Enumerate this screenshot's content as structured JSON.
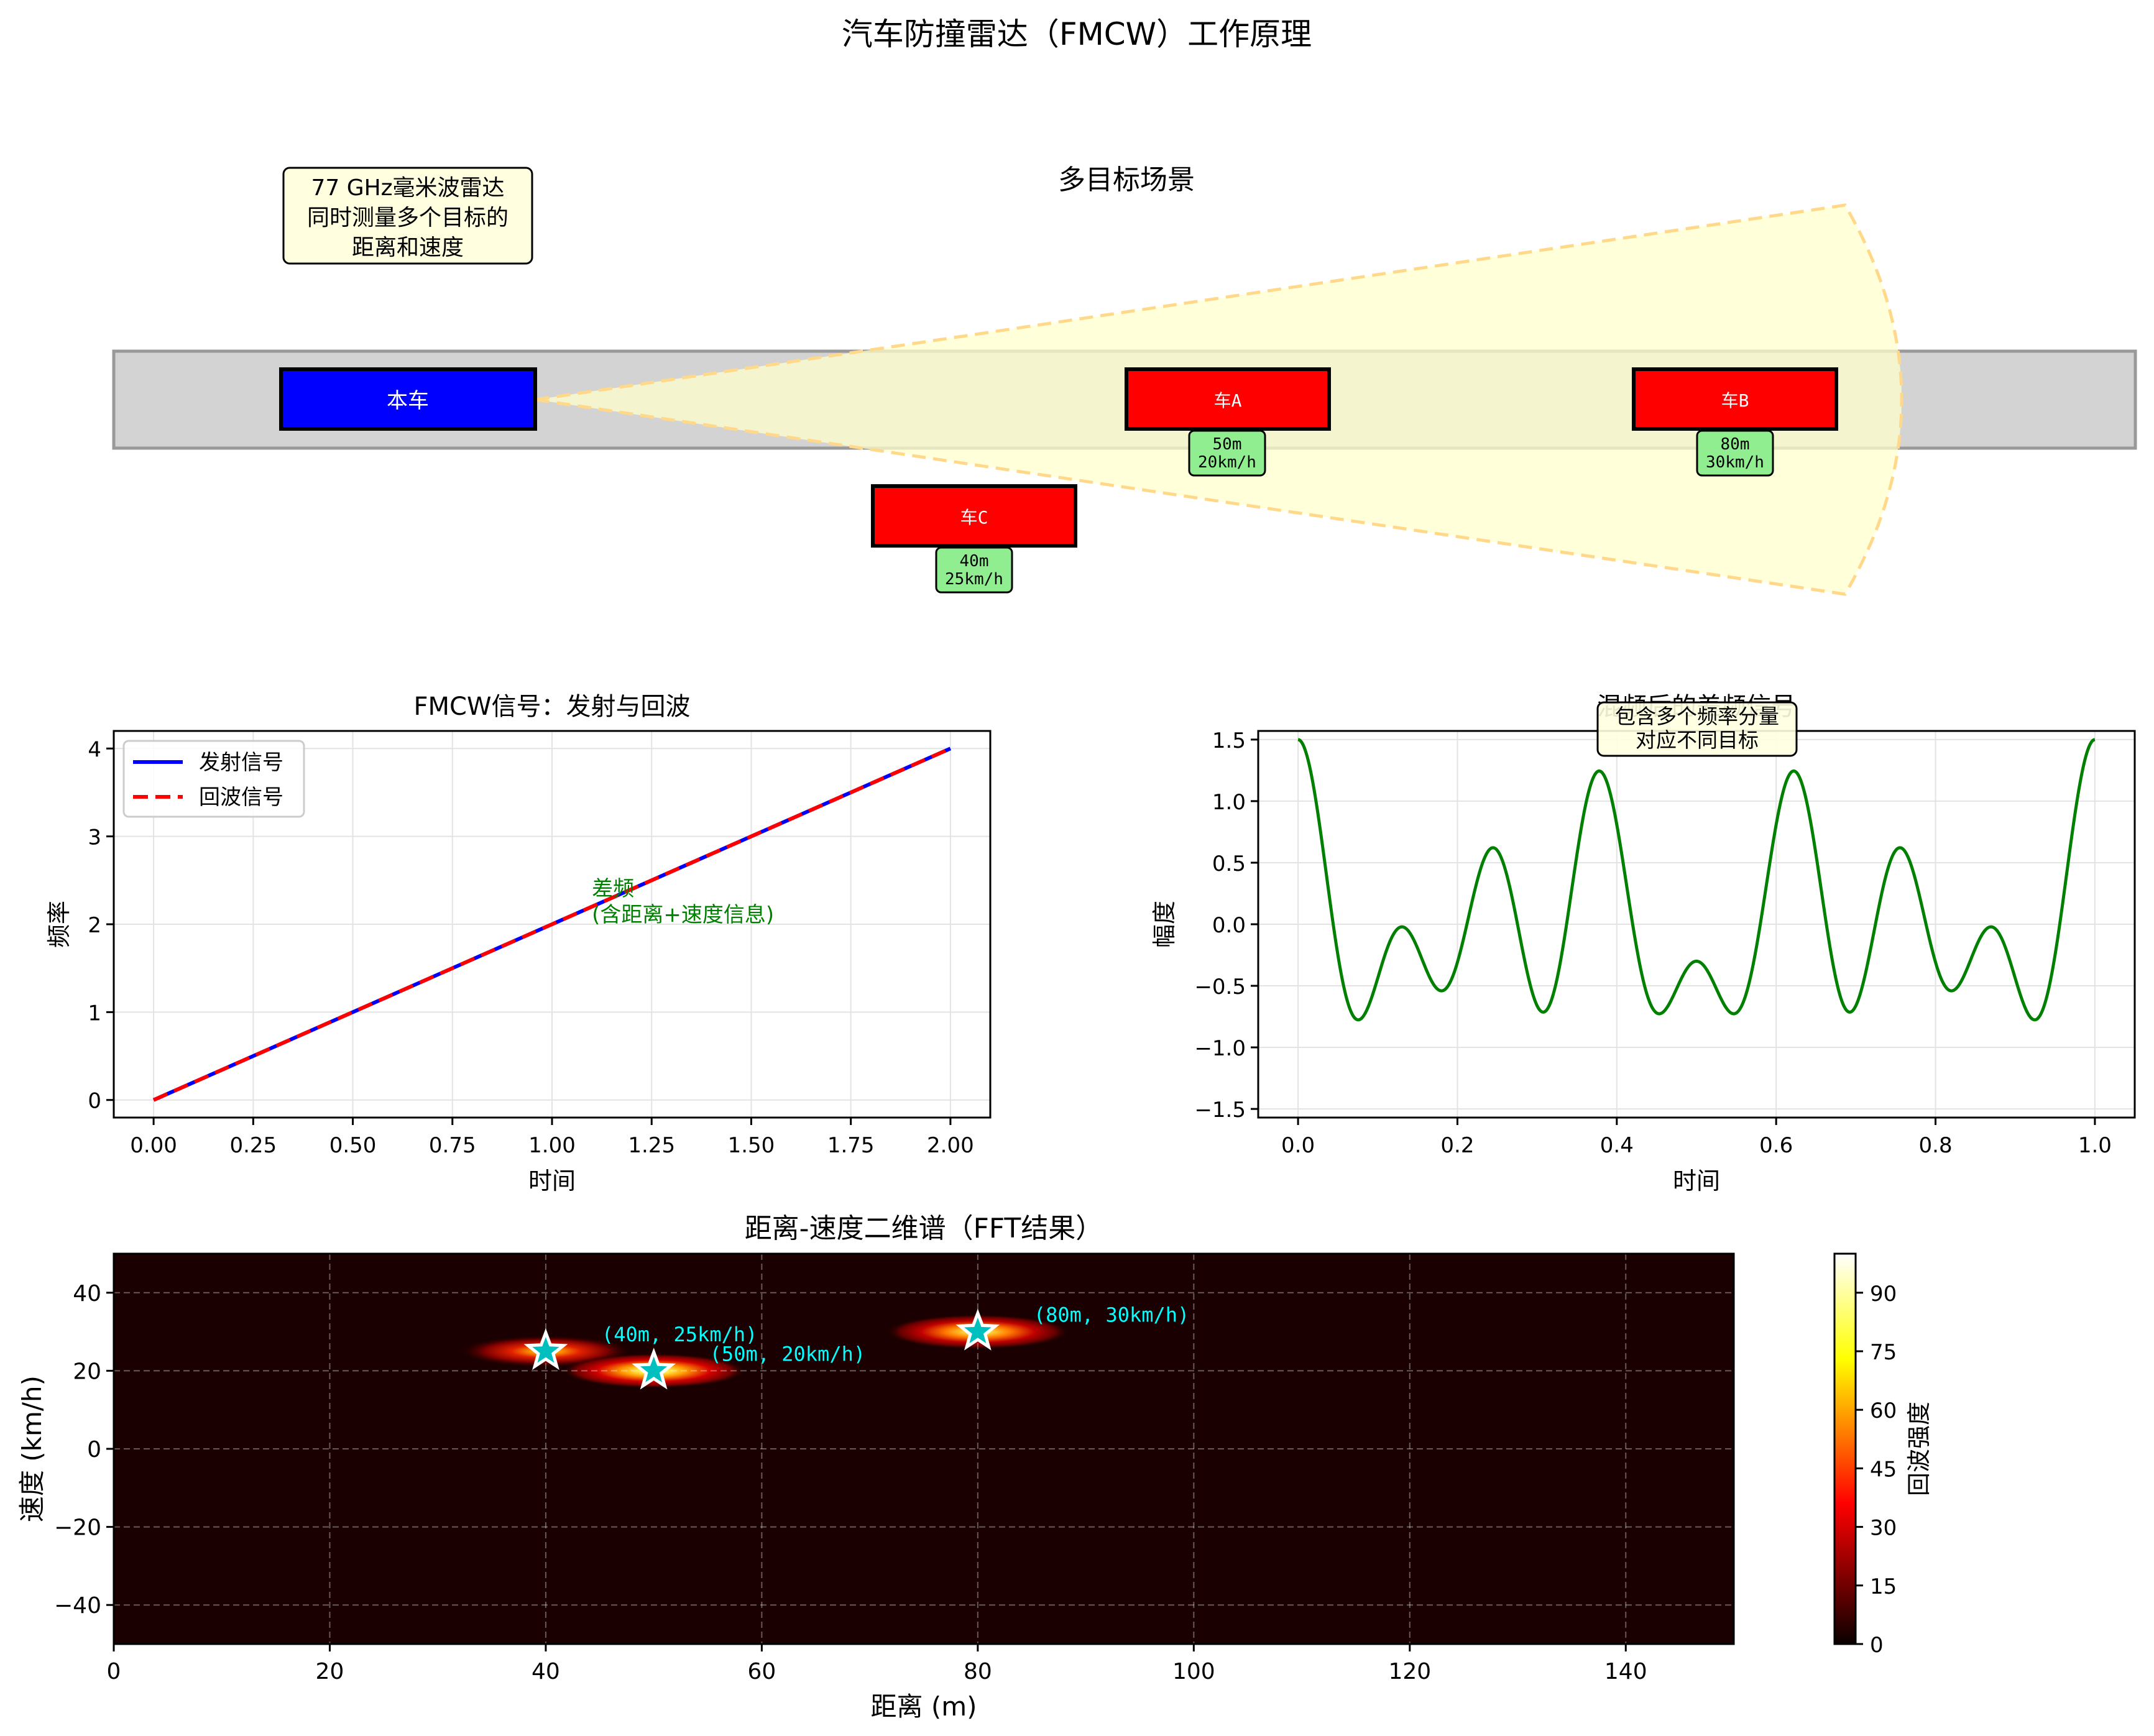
{
  "title": "汽车防撞雷达（FMCW）工作原理",
  "scene": {
    "title": "多目标场景",
    "info_box": [
      "77 GHz毫米波雷达",
      "同时测量多个目标的",
      "距离和速度"
    ],
    "ego": {
      "label": "本车",
      "color": "#0000ff"
    },
    "targets": [
      {
        "id": "A",
        "label": "车A",
        "distance": "50m",
        "speed": "20km/h",
        "lane": 0,
        "pos_m": 50
      },
      {
        "id": "B",
        "label": "车B",
        "distance": "80m",
        "speed": "30km/h",
        "lane": 0,
        "pos_m": 80
      },
      {
        "id": "C",
        "label": "车C",
        "distance": "40m",
        "speed": "25km/h",
        "lane": 1,
        "pos_m": 40
      }
    ],
    "colors": {
      "road": "#d3d3d3",
      "beam": "#ffffcc",
      "target": "#ff0000",
      "tag": "#90ee90"
    }
  },
  "chart_data": [
    {
      "type": "line",
      "title": "FMCW信号：发射与回波",
      "xlabel": "时间",
      "ylabel": "频率",
      "xlim": [
        -0.1,
        2.1
      ],
      "ylim": [
        -0.2,
        4.2
      ],
      "xticks": [
        0.0,
        0.25,
        0.5,
        0.75,
        1.0,
        1.25,
        1.5,
        1.75,
        2.0
      ],
      "xtick_labels": [
        "0.00",
        "0.25",
        "0.50",
        "0.75",
        "1.00",
        "1.25",
        "1.50",
        "1.75",
        "2.00"
      ],
      "yticks": [
        0,
        1,
        2,
        3,
        4
      ],
      "ytick_labels": [
        "0",
        "1",
        "2",
        "3",
        "4"
      ],
      "grid": true,
      "legend": "upper-left",
      "series": [
        {
          "name": "发射信号",
          "color": "#0000ff",
          "style": "solid",
          "x": [
            0,
            2
          ],
          "y": [
            0,
            4
          ]
        },
        {
          "name": "回波信号",
          "color": "#ff0000",
          "style": "dashed",
          "x": [
            0,
            2
          ],
          "y": [
            0,
            4
          ]
        }
      ],
      "annotation": {
        "lines": [
          "差频",
          "(含距离+速度信息)"
        ],
        "x": 1.1,
        "y": 2.0,
        "color": "#008000"
      }
    },
    {
      "type": "line",
      "title": "混频后的差频信号",
      "xlabel": "时间",
      "ylabel": "幅度",
      "xlim": [
        -0.05,
        1.05
      ],
      "ylim": [
        -1.57,
        1.57
      ],
      "xticks": [
        0.0,
        0.2,
        0.4,
        0.6,
        0.8,
        1.0
      ],
      "xtick_labels": [
        "0.0",
        "0.2",
        "0.4",
        "0.6",
        "0.8",
        "1.0"
      ],
      "yticks": [
        -1.5,
        -1.0,
        -0.5,
        0.0,
        0.5,
        1.0,
        1.5
      ],
      "ytick_labels": [
        "−1.5",
        "−1.0",
        "−0.5",
        "0.0",
        "0.5",
        "1.0",
        "1.5"
      ],
      "grid": true,
      "series": [
        {
          "name": "",
          "color": "#008000",
          "formula": "0.5cos(10πt)+0.6cos(16πt)+0.4cos(6πt)",
          "t_range": [
            0,
            1
          ]
        }
      ],
      "annotation": {
        "lines": [
          "包含多个频率分量",
          "对应不同目标"
        ]
      }
    },
    {
      "type": "heatmap",
      "title": "距离-速度二维谱（FFT结果）",
      "xlabel": "距离 (m)",
      "ylabel": "速度 (km/h)",
      "xlim": [
        0,
        150
      ],
      "ylim": [
        -50,
        50
      ],
      "xticks": [
        0,
        20,
        40,
        60,
        80,
        100,
        120,
        140
      ],
      "xtick_labels": [
        "0",
        "20",
        "40",
        "60",
        "80",
        "100",
        "120",
        "140"
      ],
      "yticks": [
        -40,
        -20,
        0,
        20,
        40
      ],
      "ytick_labels": [
        "−40",
        "−20",
        "0",
        "20",
        "40"
      ],
      "grid": true,
      "colormap": "hot",
      "colorbar": {
        "label": "回波强度",
        "range": [
          0,
          100
        ],
        "ticks": [
          0,
          15,
          30,
          45,
          60,
          75,
          90
        ],
        "tick_labels": [
          "0",
          "15",
          "30",
          "45",
          "60",
          "75",
          "90"
        ]
      },
      "peaks": [
        {
          "distance": 40,
          "speed": 25,
          "intensity": 80,
          "label": "(40m, 25km/h)"
        },
        {
          "distance": 50,
          "speed": 20,
          "intensity": 100,
          "label": "(50m, 20km/h)"
        },
        {
          "distance": 80,
          "speed": 30,
          "intensity": 90,
          "label": "(80m, 30km/h)"
        }
      ],
      "marker_color": "#00bfbf",
      "label_color": "#00ffff"
    }
  ]
}
